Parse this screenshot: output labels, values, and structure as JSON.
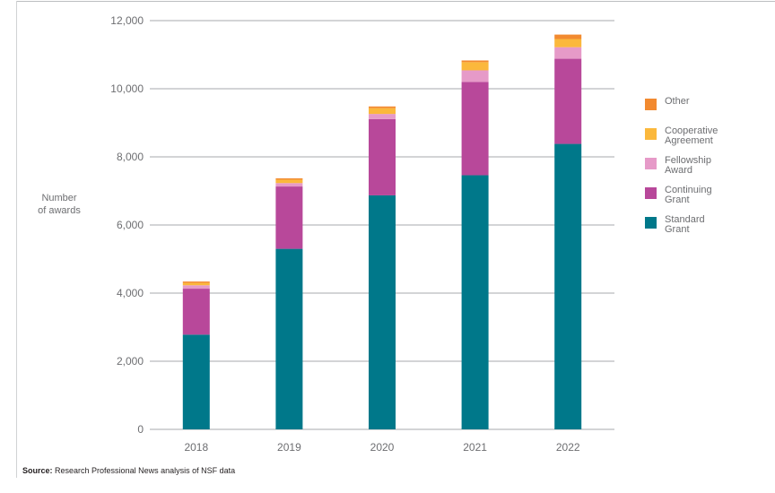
{
  "chart_data": {
    "type": "bar",
    "stacked": true,
    "categories": [
      "2018",
      "2019",
      "2020",
      "2021",
      "2022"
    ],
    "series": [
      {
        "name": "Standard Grant",
        "color": "#00788a",
        "values": [
          2780,
          5300,
          6870,
          7460,
          8380
        ]
      },
      {
        "name": "Continuing Grant",
        "color": "#b8489a",
        "values": [
          1350,
          1830,
          2240,
          2740,
          2500
        ]
      },
      {
        "name": "Fellowship Award",
        "color": "#e69ac8",
        "values": [
          100,
          100,
          150,
          340,
          340
        ]
      },
      {
        "name": "Cooperative Agreement",
        "color": "#fbb83c",
        "values": [
          70,
          100,
          170,
          240,
          240
        ]
      },
      {
        "name": "Other",
        "color": "#f28a30",
        "values": [
          40,
          40,
          50,
          50,
          130
        ]
      }
    ],
    "ylabel": "Number of awards",
    "xlabel": "",
    "ylim": [
      0,
      12000
    ],
    "yticks": [
      0,
      2000,
      4000,
      6000,
      8000,
      10000,
      12000
    ],
    "ytick_labels": [
      "0",
      "2,000",
      "4,000",
      "6,000",
      "8,000",
      "10,000",
      "12,000"
    ],
    "grid": true,
    "legend_position": "right",
    "legend_order": [
      "Other",
      "Cooperative Agreement",
      "Fellowship Award",
      "Continuing Grant",
      "Standard Grant"
    ]
  },
  "legend_labels": {
    "other": "Other",
    "cooperative": "Cooperative\nAgreement",
    "fellowship": "Fellowship\nAward",
    "continuing": "Continuing\nGrant",
    "standard": "Standard\nGrant"
  },
  "axis": {
    "ylabel": "Number\nof awards"
  },
  "source": {
    "label": "Source:",
    "text": "Research Professional News analysis of NSF data"
  }
}
